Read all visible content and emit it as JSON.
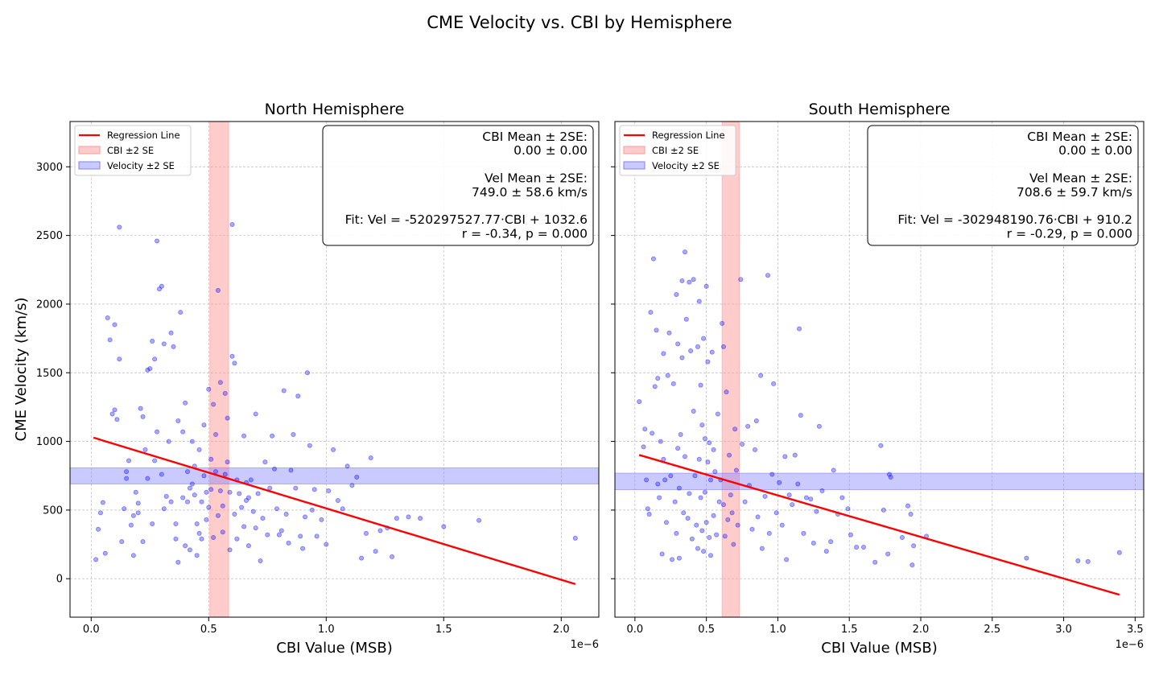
{
  "figure": {
    "title": "CME Velocity vs. CBI by Hemisphere",
    "ylabel": "CME Velocity (km/s)",
    "colors": {
      "scatter": "#0000ff",
      "regression": "#ff0000",
      "cbi_band": "#ff9999",
      "vel_band": "#8080ff",
      "grid": "#b0b0b0"
    }
  },
  "legend": {
    "regression": "Regression Line",
    "cbi_band": "CBI ±2 SE",
    "vel_band": "Velocity ±2 SE"
  },
  "chart_data": [
    {
      "type": "scatter",
      "title": "North Hemisphere",
      "xlabel": "CBI Value (MSB)",
      "ylabel": "CME Velocity (km/s)",
      "x_offset_label": "1e−6",
      "xlim": [
        -0.09,
        2.16
      ],
      "ylim": [
        -280,
        3330
      ],
      "xticks": [
        0.0,
        0.5,
        1.0,
        1.5,
        2.0
      ],
      "xtick_labels": [
        "0.0",
        "0.5",
        "1.0",
        "1.5",
        "2.0"
      ],
      "yticks": [
        0,
        500,
        1000,
        1500,
        2000,
        2500,
        3000
      ],
      "ytick_labels": [
        "0",
        "500",
        "1000",
        "1500",
        "2000",
        "2500",
        "3000"
      ],
      "grid": true,
      "legend_position": "upper-left",
      "stats_position": "upper-right",
      "stats_lines": [
        "CBI Mean ± 2SE:",
        "0.00 ± 0.00",
        "",
        "Vel Mean ± 2SE:",
        "749.0 ± 58.6 km/s",
        "",
        "Fit: Vel = -520297527.77·CBI + 1032.6",
        "r = -0.34, p = 0.000"
      ],
      "regression": {
        "x": [
          0.01,
          2.06
        ],
        "y": [
          1027.4,
          -39.2
        ]
      },
      "cbi_band": [
        0.505,
        0.585
      ],
      "vel_band": [
        690.4,
        807.6
      ],
      "points": [
        [
          0.02,
          140
        ],
        [
          0.03,
          360
        ],
        [
          0.04,
          480
        ],
        [
          0.05,
          555
        ],
        [
          0.06,
          185
        ],
        [
          0.07,
          1900
        ],
        [
          0.08,
          1740
        ],
        [
          0.09,
          1200
        ],
        [
          0.1,
          1230
        ],
        [
          0.1,
          1850
        ],
        [
          0.11,
          1160
        ],
        [
          0.12,
          2560
        ],
        [
          0.12,
          1600
        ],
        [
          0.13,
          270
        ],
        [
          0.14,
          510
        ],
        [
          0.15,
          780
        ],
        [
          0.15,
          730
        ],
        [
          0.16,
          860
        ],
        [
          0.17,
          390
        ],
        [
          0.18,
          460
        ],
        [
          0.18,
          170
        ],
        [
          0.19,
          630
        ],
        [
          0.2,
          550
        ],
        [
          0.2,
          480
        ],
        [
          0.21,
          1240
        ],
        [
          0.22,
          270
        ],
        [
          0.22,
          1180
        ],
        [
          0.23,
          940
        ],
        [
          0.24,
          730
        ],
        [
          0.24,
          1520
        ],
        [
          0.25,
          1530
        ],
        [
          0.26,
          1730
        ],
        [
          0.26,
          400
        ],
        [
          0.27,
          1600
        ],
        [
          0.27,
          860
        ],
        [
          0.28,
          2460
        ],
        [
          0.28,
          1070
        ],
        [
          0.29,
          2110
        ],
        [
          0.3,
          2130
        ],
        [
          0.3,
          760
        ],
        [
          0.31,
          1710
        ],
        [
          0.31,
          510
        ],
        [
          0.32,
          600
        ],
        [
          0.33,
          1000
        ],
        [
          0.34,
          1790
        ],
        [
          0.34,
          560
        ],
        [
          0.35,
          1690
        ],
        [
          0.36,
          400
        ],
        [
          0.36,
          290
        ],
        [
          0.37,
          1150
        ],
        [
          0.37,
          120
        ],
        [
          0.38,
          1940
        ],
        [
          0.39,
          590
        ],
        [
          0.39,
          1070
        ],
        [
          0.4,
          1280
        ],
        [
          0.4,
          240
        ],
        [
          0.41,
          780
        ],
        [
          0.41,
          560
        ],
        [
          0.42,
          660
        ],
        [
          0.42,
          210
        ],
        [
          0.43,
          1000
        ],
        [
          0.43,
          690
        ],
        [
          0.44,
          820
        ],
        [
          0.44,
          610
        ],
        [
          0.45,
          400
        ],
        [
          0.45,
          170
        ],
        [
          0.46,
          330
        ],
        [
          0.46,
          940
        ],
        [
          0.47,
          560
        ],
        [
          0.47,
          290
        ],
        [
          0.48,
          750
        ],
        [
          0.48,
          1120
        ],
        [
          0.49,
          630
        ],
        [
          0.49,
          430
        ],
        [
          0.5,
          1380
        ],
        [
          0.5,
          520
        ],
        [
          0.51,
          870
        ],
        [
          0.51,
          650
        ],
        [
          0.52,
          300
        ],
        [
          0.52,
          1270
        ],
        [
          0.53,
          1050
        ],
        [
          0.53,
          780
        ],
        [
          0.54,
          460
        ],
        [
          0.54,
          2100
        ],
        [
          0.55,
          1430
        ],
        [
          0.55,
          640
        ],
        [
          0.56,
          530
        ],
        [
          0.56,
          340
        ],
        [
          0.57,
          1350
        ],
        [
          0.57,
          760
        ],
        [
          0.58,
          850
        ],
        [
          0.58,
          1170
        ],
        [
          0.59,
          630
        ],
        [
          0.59,
          210
        ],
        [
          0.6,
          2580
        ],
        [
          0.6,
          1620
        ],
        [
          0.61,
          1570
        ],
        [
          0.61,
          470
        ],
        [
          0.62,
          720
        ],
        [
          0.62,
          290
        ],
        [
          0.63,
          620
        ],
        [
          0.64,
          520
        ],
        [
          0.65,
          1040
        ],
        [
          0.65,
          380
        ],
        [
          0.66,
          700
        ],
        [
          0.66,
          570
        ],
        [
          0.67,
          590
        ],
        [
          0.67,
          240
        ],
        [
          0.68,
          720
        ],
        [
          0.69,
          490
        ],
        [
          0.7,
          370
        ],
        [
          0.7,
          1200
        ],
        [
          0.71,
          620
        ],
        [
          0.72,
          130
        ],
        [
          0.73,
          440
        ],
        [
          0.74,
          850
        ],
        [
          0.75,
          320
        ],
        [
          0.76,
          660
        ],
        [
          0.77,
          1040
        ],
        [
          0.78,
          800
        ],
        [
          0.79,
          510
        ],
        [
          0.8,
          320
        ],
        [
          0.81,
          350
        ],
        [
          0.82,
          1370
        ],
        [
          0.83,
          470
        ],
        [
          0.84,
          260
        ],
        [
          0.85,
          790
        ],
        [
          0.86,
          1050
        ],
        [
          0.87,
          660
        ],
        [
          0.88,
          1330
        ],
        [
          0.89,
          310
        ],
        [
          0.9,
          220
        ],
        [
          0.91,
          450
        ],
        [
          0.92,
          1500
        ],
        [
          0.93,
          970
        ],
        [
          0.94,
          500
        ],
        [
          0.95,
          650
        ],
        [
          0.96,
          310
        ],
        [
          0.98,
          430
        ],
        [
          1.0,
          250
        ],
        [
          1.01,
          640
        ],
        [
          1.03,
          940
        ],
        [
          1.05,
          570
        ],
        [
          1.07,
          510
        ],
        [
          1.09,
          820
        ],
        [
          1.11,
          680
        ],
        [
          1.13,
          740
        ],
        [
          1.15,
          150
        ],
        [
          1.17,
          330
        ],
        [
          1.19,
          880
        ],
        [
          1.21,
          200
        ],
        [
          1.23,
          350
        ],
        [
          1.26,
          370
        ],
        [
          1.28,
          160
        ],
        [
          1.3,
          440
        ],
        [
          1.35,
          450
        ],
        [
          1.4,
          440
        ],
        [
          1.5,
          380
        ],
        [
          1.65,
          425
        ],
        [
          2.06,
          295
        ]
      ]
    },
    {
      "type": "scatter",
      "title": "South Hemisphere",
      "xlabel": "CBI Value (MSB)",
      "ylabel": "",
      "x_offset_label": "1e−6",
      "xlim": [
        -0.14,
        3.56
      ],
      "ylim": [
        -280,
        3330
      ],
      "xticks": [
        0.0,
        0.5,
        1.0,
        1.5,
        2.0,
        2.5,
        3.0,
        3.5
      ],
      "xtick_labels": [
        "0.0",
        "0.5",
        "1.0",
        "1.5",
        "2.0",
        "2.5",
        "3.0",
        "3.5"
      ],
      "yticks": [
        0,
        500,
        1000,
        1500,
        2000,
        2500,
        3000
      ],
      "ytick_labels": [
        "",
        "",
        "",
        "",
        "",
        "",
        ""
      ],
      "grid": true,
      "legend_position": "upper-left",
      "stats_position": "upper-right",
      "stats_lines": [
        "CBI Mean ± 2SE:",
        "0.00 ± 0.00",
        "",
        "Vel Mean ± 2SE:",
        "708.6 ± 59.7 km/s",
        "",
        "Fit: Vel = -302948190.76·CBI + 910.2",
        "r = -0.29, p = 0.000"
      ],
      "regression": {
        "x": [
          0.03,
          3.39
        ],
        "y": [
          901.1,
          -116.8
        ]
      },
      "cbi_band": [
        0.61,
        0.73
      ],
      "vel_band": [
        648.9,
        768.3
      ],
      "points": [
        [
          0.03,
          1290
        ],
        [
          0.06,
          960
        ],
        [
          0.07,
          1090
        ],
        [
          0.08,
          720
        ],
        [
          0.09,
          510
        ],
        [
          0.1,
          470
        ],
        [
          0.11,
          1940
        ],
        [
          0.12,
          1060
        ],
        [
          0.13,
          2330
        ],
        [
          0.14,
          1400
        ],
        [
          0.15,
          1810
        ],
        [
          0.16,
          1460
        ],
        [
          0.16,
          690
        ],
        [
          0.17,
          590
        ],
        [
          0.18,
          1000
        ],
        [
          0.19,
          180
        ],
        [
          0.2,
          1640
        ],
        [
          0.2,
          870
        ],
        [
          0.21,
          720
        ],
        [
          0.22,
          410
        ],
        [
          0.23,
          1480
        ],
        [
          0.24,
          1790
        ],
        [
          0.25,
          750
        ],
        [
          0.26,
          140
        ],
        [
          0.27,
          1420
        ],
        [
          0.28,
          560
        ],
        [
          0.29,
          2070
        ],
        [
          0.29,
          330
        ],
        [
          0.3,
          1710
        ],
        [
          0.3,
          950
        ],
        [
          0.31,
          660
        ],
        [
          0.31,
          150
        ],
        [
          0.32,
          1050
        ],
        [
          0.33,
          2170
        ],
        [
          0.33,
          1610
        ],
        [
          0.34,
          480
        ],
        [
          0.35,
          2380
        ],
        [
          0.35,
          890
        ],
        [
          0.36,
          1890
        ],
        [
          0.37,
          440
        ],
        [
          0.38,
          2160
        ],
        [
          0.38,
          620
        ],
        [
          0.39,
          1660
        ],
        [
          0.4,
          290
        ],
        [
          0.41,
          2180
        ],
        [
          0.41,
          1220
        ],
        [
          0.42,
          750
        ],
        [
          0.43,
          390
        ],
        [
          0.44,
          1690
        ],
        [
          0.44,
          220
        ],
        [
          0.45,
          2020
        ],
        [
          0.45,
          870
        ],
        [
          0.46,
          1410
        ],
        [
          0.46,
          590
        ],
        [
          0.47,
          1120
        ],
        [
          0.47,
          350
        ],
        [
          0.48,
          1750
        ],
        [
          0.48,
          200
        ],
        [
          0.49,
          1020
        ],
        [
          0.49,
          630
        ],
        [
          0.5,
          2130
        ],
        [
          0.5,
          410
        ],
        [
          0.51,
          1580
        ],
        [
          0.51,
          850
        ],
        [
          0.52,
          990
        ],
        [
          0.52,
          300
        ],
        [
          0.53,
          720
        ],
        [
          0.53,
          170
        ],
        [
          0.54,
          1650
        ],
        [
          0.55,
          940
        ],
        [
          0.55,
          460
        ],
        [
          0.56,
          780
        ],
        [
          0.57,
          320
        ],
        [
          0.58,
          1200
        ],
        [
          0.59,
          560
        ],
        [
          0.6,
          720
        ],
        [
          0.61,
          1860
        ],
        [
          0.62,
          1690
        ],
        [
          0.62,
          540
        ],
        [
          0.63,
          310
        ],
        [
          0.64,
          1360
        ],
        [
          0.65,
          430
        ],
        [
          0.66,
          900
        ],
        [
          0.67,
          610
        ],
        [
          0.68,
          480
        ],
        [
          0.69,
          250
        ],
        [
          0.7,
          1090
        ],
        [
          0.71,
          790
        ],
        [
          0.72,
          390
        ],
        [
          0.74,
          2180
        ],
        [
          0.75,
          980
        ],
        [
          0.77,
          560
        ],
        [
          0.79,
          1110
        ],
        [
          0.8,
          680
        ],
        [
          0.82,
          360
        ],
        [
          0.84,
          940
        ],
        [
          0.85,
          1150
        ],
        [
          0.86,
          450
        ],
        [
          0.88,
          1480
        ],
        [
          0.89,
          220
        ],
        [
          0.91,
          600
        ],
        [
          0.93,
          2210
        ],
        [
          0.94,
          330
        ],
        [
          0.96,
          760
        ],
        [
          0.97,
          1420
        ],
        [
          0.99,
          480
        ],
        [
          1.01,
          700
        ],
        [
          1.03,
          390
        ],
        [
          1.05,
          890
        ],
        [
          1.06,
          140
        ],
        [
          1.08,
          610
        ],
        [
          1.1,
          540
        ],
        [
          1.12,
          900
        ],
        [
          1.14,
          690
        ],
        [
          1.15,
          1820
        ],
        [
          1.16,
          1190
        ],
        [
          1.18,
          330
        ],
        [
          1.2,
          590
        ],
        [
          1.23,
          580
        ],
        [
          1.25,
          260
        ],
        [
          1.27,
          490
        ],
        [
          1.29,
          1110
        ],
        [
          1.31,
          640
        ],
        [
          1.34,
          200
        ],
        [
          1.37,
          270
        ],
        [
          1.39,
          790
        ],
        [
          1.42,
          470
        ],
        [
          1.45,
          590
        ],
        [
          1.49,
          510
        ],
        [
          1.51,
          320
        ],
        [
          1.55,
          230
        ],
        [
          1.6,
          230
        ],
        [
          1.68,
          120
        ],
        [
          1.72,
          970
        ],
        [
          1.74,
          500
        ],
        [
          1.77,
          180
        ],
        [
          1.78,
          760
        ],
        [
          1.79,
          740
        ],
        [
          1.87,
          300
        ],
        [
          1.91,
          530
        ],
        [
          1.93,
          470
        ],
        [
          1.94,
          100
        ],
        [
          1.95,
          240
        ],
        [
          2.04,
          310
        ],
        [
          2.74,
          150
        ],
        [
          3.1,
          130
        ],
        [
          3.17,
          125
        ],
        [
          3.39,
          190
        ]
      ]
    }
  ]
}
